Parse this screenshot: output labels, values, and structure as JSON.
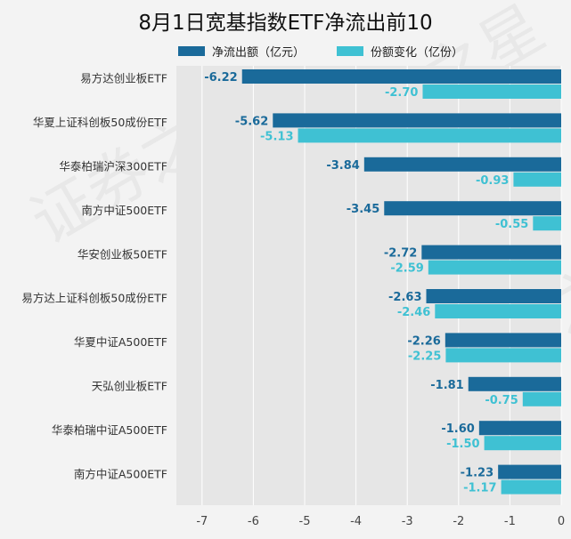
{
  "chart_data": {
    "type": "bar",
    "orientation": "horizontal",
    "title": "8月1日宽基指数ETF净流出前10",
    "categories": [
      "易方达创业板ETF",
      "华夏上证科创板50成份ETF",
      "华泰柏瑞沪深300ETF",
      "南方中证500ETF",
      "华安创业板50ETF",
      "易方达上证科创板50成份ETF",
      "华夏中证A500ETF",
      "天弘创业板ETF",
      "华泰柏瑞中证A500ETF",
      "南方中证A500ETF"
    ],
    "series": [
      {
        "name": "净流出额（亿元）",
        "color": "#1a6a9a",
        "values": [
          -6.22,
          -5.62,
          -3.84,
          -3.45,
          -2.72,
          -2.63,
          -2.26,
          -1.81,
          -1.6,
          -1.23
        ],
        "labels": [
          "-6.22",
          "-5.62",
          "-3.84",
          "-3.45",
          "-2.72",
          "-2.63",
          "-2.26",
          "-1.81",
          "-1.60",
          "-1.23"
        ]
      },
      {
        "name": "份额变化（亿份）",
        "color": "#3fc1d3",
        "values": [
          -2.7,
          -5.13,
          -0.93,
          -0.55,
          -2.59,
          -2.46,
          -2.25,
          -0.75,
          -1.5,
          -1.17
        ],
        "labels": [
          "-2.70",
          "-5.13",
          "-0.93",
          "-0.55",
          "-2.59",
          "-2.46",
          "-2.25",
          "-0.75",
          "-1.50",
          "-1.17"
        ]
      }
    ],
    "xlim": [
      -7.5,
      0
    ],
    "xticks": [
      -7,
      -6,
      -5,
      -4,
      -3,
      -2,
      -1,
      0
    ],
    "xtick_labels": [
      "-7",
      "-6",
      "-5",
      "-4",
      "-3",
      "-2",
      "-1",
      "0"
    ],
    "grid": true,
    "legend_position": "top",
    "watermark": "证券之星"
  }
}
